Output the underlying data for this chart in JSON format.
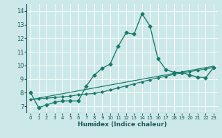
{
  "xlabel": "Humidex (Indice chaleur)",
  "bg_color": "#cce8e8",
  "grid_color": "#b8d8d8",
  "line_color": "#1a7a6a",
  "xlim": [
    -0.5,
    23.5
  ],
  "ylim": [
    6.5,
    14.5
  ],
  "yticks": [
    7,
    8,
    9,
    10,
    11,
    12,
    13,
    14
  ],
  "xticks": [
    0,
    1,
    2,
    3,
    4,
    5,
    6,
    7,
    8,
    9,
    10,
    11,
    12,
    13,
    14,
    15,
    16,
    17,
    18,
    19,
    20,
    21,
    22,
    23
  ],
  "series1_x": [
    0,
    1,
    2,
    3,
    4,
    5,
    6,
    7,
    8,
    9,
    10,
    11,
    12,
    13,
    14,
    15,
    16,
    17,
    18,
    19,
    20,
    21,
    22,
    23
  ],
  "series1_y": [
    8.0,
    6.9,
    7.1,
    7.3,
    7.4,
    7.4,
    7.4,
    8.5,
    9.3,
    9.8,
    10.1,
    11.4,
    12.4,
    12.3,
    13.8,
    12.9,
    10.5,
    9.7,
    9.5,
    9.5,
    9.3,
    9.15,
    9.1,
    9.85
  ],
  "series2_x": [
    0,
    1,
    2,
    3,
    4,
    5,
    6,
    7,
    8,
    9,
    10,
    11,
    12,
    13,
    14,
    15,
    16,
    17,
    18,
    19,
    20,
    21,
    22,
    23
  ],
  "series2_y": [
    7.5,
    7.55,
    7.6,
    7.65,
    7.7,
    7.75,
    7.85,
    7.9,
    7.95,
    8.05,
    8.2,
    8.35,
    8.5,
    8.65,
    8.8,
    8.95,
    9.1,
    9.2,
    9.35,
    9.45,
    9.55,
    9.65,
    9.75,
    9.85
  ],
  "series3_x": [
    0,
    23
  ],
  "series3_y": [
    7.5,
    9.95
  ]
}
